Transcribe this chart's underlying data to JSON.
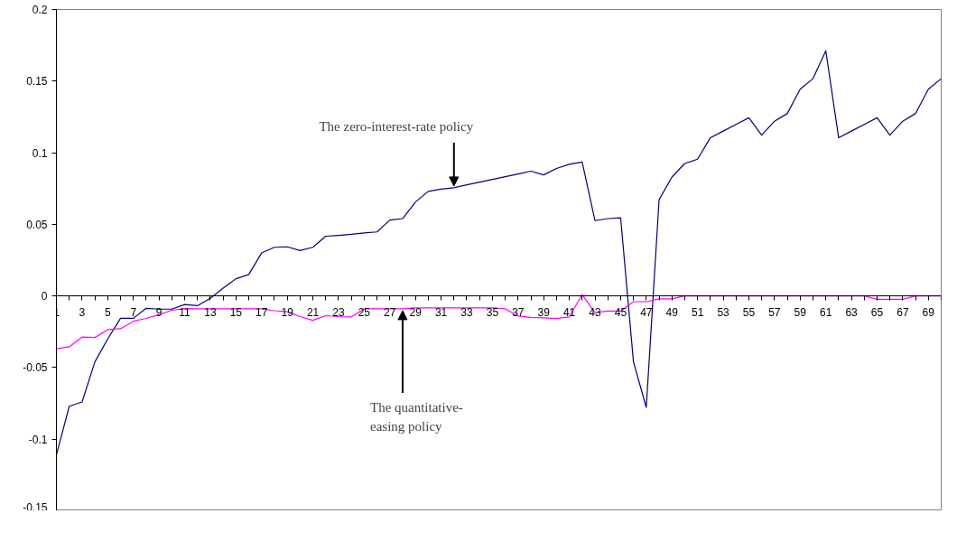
{
  "chart_data": {
    "type": "line",
    "x": [
      1,
      2,
      3,
      4,
      5,
      6,
      7,
      8,
      9,
      10,
      11,
      12,
      13,
      14,
      15,
      16,
      17,
      18,
      19,
      20,
      21,
      22,
      23,
      24,
      25,
      26,
      27,
      28,
      29,
      30,
      31,
      32,
      33,
      34,
      35,
      36,
      37,
      38,
      39,
      40,
      41,
      42,
      43,
      44,
      45,
      46,
      47,
      48,
      49,
      50,
      51,
      52,
      53,
      54,
      55,
      56,
      57,
      58,
      59,
      60,
      61,
      62,
      63,
      64,
      65,
      66,
      67,
      68,
      69,
      70
    ],
    "series": [
      {
        "color": "#000080",
        "values": [
          -0.111,
          -0.077,
          -0.074,
          -0.046,
          -0.03,
          -0.0156,
          -0.0156,
          -0.0086,
          -0.0092,
          -0.0092,
          -0.006,
          -0.0068,
          -0.0016,
          0.0054,
          0.012,
          0.015,
          0.03,
          0.034,
          0.0343,
          0.0317,
          0.034,
          0.0417,
          0.0423,
          0.043,
          0.044,
          0.0447,
          0.053,
          0.054,
          0.0656,
          0.073,
          0.0746,
          0.0755,
          0.0776,
          0.0795,
          0.0814,
          0.0833,
          0.0852,
          0.0871,
          0.0845,
          0.089,
          0.0919,
          0.0935,
          0.0526,
          0.054,
          0.0546,
          -0.046,
          -0.0778,
          0.0672,
          0.083,
          0.0925,
          0.0955,
          0.1105,
          0.1151,
          0.1198,
          0.1244,
          0.1123,
          0.122,
          0.1274,
          0.1443,
          0.1517,
          0.1712,
          0.1105,
          0.1151,
          0.1198,
          0.1244,
          0.1123,
          0.122,
          0.1274,
          0.1443,
          0.1517
        ]
      },
      {
        "color": "#ff00ff",
        "values": [
          -0.0369,
          -0.0355,
          -0.0287,
          -0.029,
          -0.0235,
          -0.0229,
          -0.0177,
          -0.0157,
          -0.0131,
          -0.01,
          -0.0088,
          -0.009,
          -0.009,
          -0.009,
          -0.009,
          -0.009,
          -0.009,
          -0.0103,
          -0.011,
          -0.0144,
          -0.017,
          -0.0138,
          -0.0144,
          -0.0146,
          -0.009,
          -0.009,
          -0.009,
          -0.009,
          -0.0084,
          -0.0084,
          -0.0084,
          -0.0084,
          -0.0084,
          -0.0084,
          -0.0084,
          -0.009,
          -0.014,
          -0.015,
          -0.0153,
          -0.0157,
          -0.0146,
          0.001,
          -0.0116,
          -0.0106,
          -0.0106,
          -0.004,
          -0.004,
          -0.002,
          -0.002,
          0,
          0,
          0,
          0,
          0,
          0,
          0,
          0,
          0,
          0,
          0,
          0,
          0,
          0,
          0,
          -0.0024,
          -0.0024,
          -0.0024,
          0,
          0,
          0
        ]
      }
    ],
    "xlim": [
      1,
      70
    ],
    "xticks": [
      1,
      {
        "value": 2,
        "label": null
      },
      3,
      {
        "value": 4,
        "label": null
      },
      5,
      {
        "value": 6,
        "label": null
      },
      7,
      {
        "value": 8,
        "label": null
      },
      9,
      {
        "value": 10,
        "label": null
      },
      11,
      {
        "value": 12,
        "label": null
      },
      13,
      {
        "value": 14,
        "label": null
      },
      15,
      {
        "value": 16,
        "label": null
      },
      17,
      {
        "value": 18,
        "label": null
      },
      19,
      {
        "value": 20,
        "label": null
      },
      21,
      {
        "value": 22,
        "label": null
      },
      23,
      {
        "value": 24,
        "label": null
      },
      25,
      {
        "value": 26,
        "label": null
      },
      27,
      {
        "value": 28,
        "label": null
      },
      29,
      {
        "value": 30,
        "label": null
      },
      31,
      {
        "value": 32,
        "label": null
      },
      33,
      {
        "value": 34,
        "label": null
      },
      35,
      {
        "value": 36,
        "label": null
      },
      37,
      {
        "value": 38,
        "label": null
      },
      39,
      {
        "value": 40,
        "label": null
      },
      41,
      {
        "value": 42,
        "label": null
      },
      43,
      {
        "value": 44,
        "label": null
      },
      45,
      {
        "value": 46,
        "label": null
      },
      47,
      {
        "value": 48,
        "label": null
      },
      49,
      {
        "value": 50,
        "label": null
      },
      51,
      {
        "value": 52,
        "label": null
      },
      53,
      {
        "value": 54,
        "label": null
      },
      55,
      {
        "value": 56,
        "label": null
      },
      57,
      {
        "value": 58,
        "label": null
      },
      59,
      {
        "value": 60,
        "label": null
      },
      61,
      {
        "value": 62,
        "label": null
      },
      63,
      {
        "value": 64,
        "label": null
      },
      65,
      {
        "value": 66,
        "label": null
      },
      67,
      {
        "value": 68,
        "label": null
      },
      69,
      {
        "value": 70,
        "label": null
      }
    ],
    "ylim": [
      -0.15,
      0.2
    ],
    "yticks": [
      -0.15,
      -0.1,
      -0.05,
      0,
      0.05,
      0.1,
      0.15,
      0.2
    ],
    "annotations": [
      {
        "text": "The zero-interest-rate policy",
        "x": 32,
        "y": 0.0755
      },
      {
        "text": "The quantitative-easing policy",
        "x": 28,
        "y": -0.009
      }
    ]
  }
}
